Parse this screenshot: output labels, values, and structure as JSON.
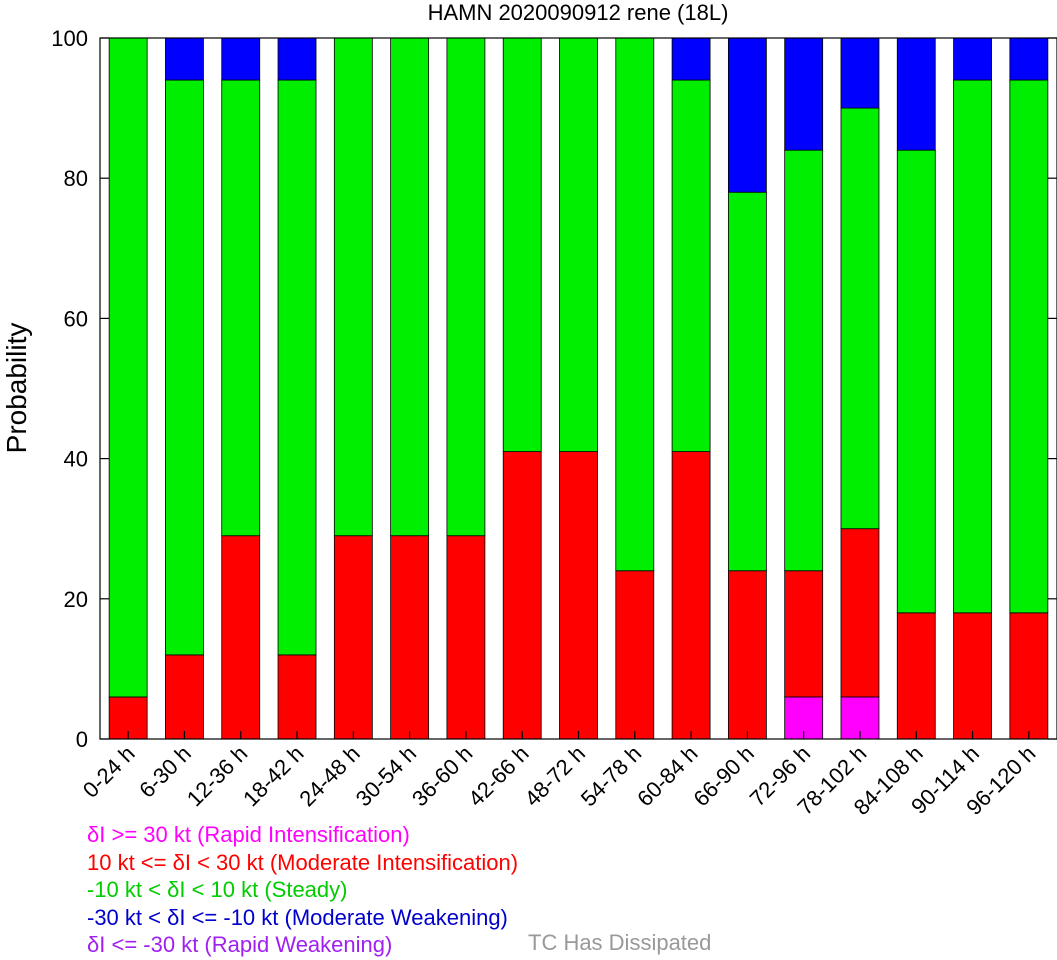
{
  "chart_data": {
    "type": "bar",
    "stacked": true,
    "title": "HAMN 2020090912 rene (18L)",
    "xlabel": "",
    "ylabel": "Probability",
    "ylim": [
      0,
      100
    ],
    "yticks": [
      0,
      20,
      40,
      60,
      80,
      100
    ],
    "grid": false,
    "categories": [
      "0-24 h",
      "6-30 h",
      "12-36 h",
      "18-42 h",
      "24-48 h",
      "30-54 h",
      "36-60 h",
      "42-66 h",
      "48-72 h",
      "54-78 h",
      "60-84 h",
      "66-90 h",
      "72-96 h",
      "78-102 h",
      "84-108 h",
      "90-114 h",
      "96-120 h"
    ],
    "series": [
      {
        "name": "δI <= -30 kt (Rapid Weakening)",
        "color": "#a020f0",
        "values": [
          0,
          0,
          0,
          0,
          0,
          0,
          0,
          0,
          0,
          0,
          0,
          0,
          0,
          0,
          0,
          0,
          0
        ]
      },
      {
        "name": "-30 kt < δI <= -10 kt (Moderate Weakening)",
        "color": "#0000ff",
        "values": [
          0,
          6,
          6,
          6,
          0,
          0,
          0,
          0,
          0,
          0,
          6,
          22,
          16,
          10,
          16,
          6,
          6
        ]
      },
      {
        "name": "-10 kt < δI < 10 kt (Steady)",
        "color": "#00ee00",
        "values": [
          94,
          82,
          65,
          82,
          71,
          71,
          71,
          59,
          59,
          76,
          53,
          54,
          60,
          60,
          66,
          76,
          76
        ]
      },
      {
        "name": "10 kt <= δI < 30 kt (Moderate Intensification)",
        "color": "#ff0000",
        "values": [
          6,
          12,
          29,
          12,
          29,
          29,
          29,
          41,
          41,
          24,
          41,
          24,
          18,
          24,
          18,
          18,
          18
        ]
      },
      {
        "name": "δI >= 30 kt (Rapid Intensification)",
        "color": "#ff00ff",
        "values": [
          0,
          0,
          0,
          0,
          0,
          0,
          0,
          0,
          0,
          0,
          0,
          0,
          6,
          6,
          0,
          0,
          0
        ]
      }
    ],
    "stack_order_bottom_to_top": [
      4,
      3,
      2,
      1,
      0
    ],
    "legend": {
      "position": "bottom",
      "entries": [
        {
          "text": "δI >= 30 kt (Rapid Intensification)",
          "color": "#ff00ff"
        },
        {
          "text": "10 kt <= δI < 30 kt (Moderate Intensification)",
          "color": "#ff0000"
        },
        {
          "text": "-10 kt < δI < 10 kt (Steady)",
          "color": "#00cc00"
        },
        {
          "text": "-30 kt < δI <= -10 kt (Moderate Weakening)",
          "color": "#0000cc"
        },
        {
          "text": "δI <= -30 kt (Rapid Weakening)",
          "color": "#a020f0"
        }
      ],
      "extra_text": "TC Has Dissipated",
      "extra_color": "#999999"
    }
  }
}
